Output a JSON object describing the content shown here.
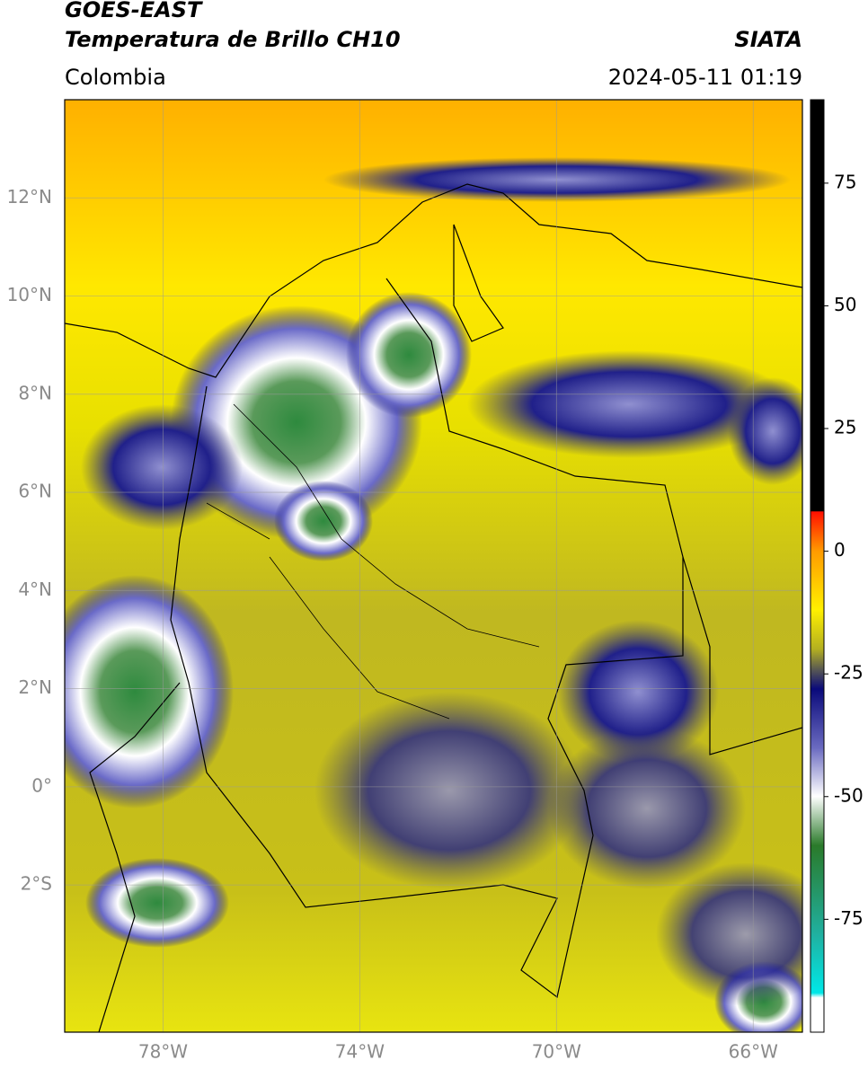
{
  "chart_data": {
    "type": "map",
    "title": "GOES-EAST",
    "subtitle": "Temperatura de Brillo CH10",
    "source": "SIATA",
    "region": "Colombia",
    "datetime": "2024-05-11 01:19",
    "xlim": [
      -80,
      -65
    ],
    "ylim": [
      -5,
      14
    ],
    "xticks": [
      {
        "value": -78,
        "label": "78°W"
      },
      {
        "value": -74,
        "label": "74°W"
      },
      {
        "value": -70,
        "label": "70°W"
      },
      {
        "value": -66,
        "label": "66°W"
      }
    ],
    "yticks": [
      {
        "value": 12,
        "label": "12°N"
      },
      {
        "value": 10,
        "label": "10°N"
      },
      {
        "value": 8,
        "label": "8°N"
      },
      {
        "value": 6,
        "label": "6°N"
      },
      {
        "value": 4,
        "label": "4°N"
      },
      {
        "value": 2,
        "label": "2°N"
      },
      {
        "value": 0,
        "label": "0°"
      },
      {
        "value": -2,
        "label": "2°S"
      }
    ],
    "grid": true,
    "colorbar_lim": [
      -98,
      92
    ],
    "colorbar_ticks": [
      75,
      50,
      25,
      0,
      -25,
      -50,
      -75
    ]
  }
}
